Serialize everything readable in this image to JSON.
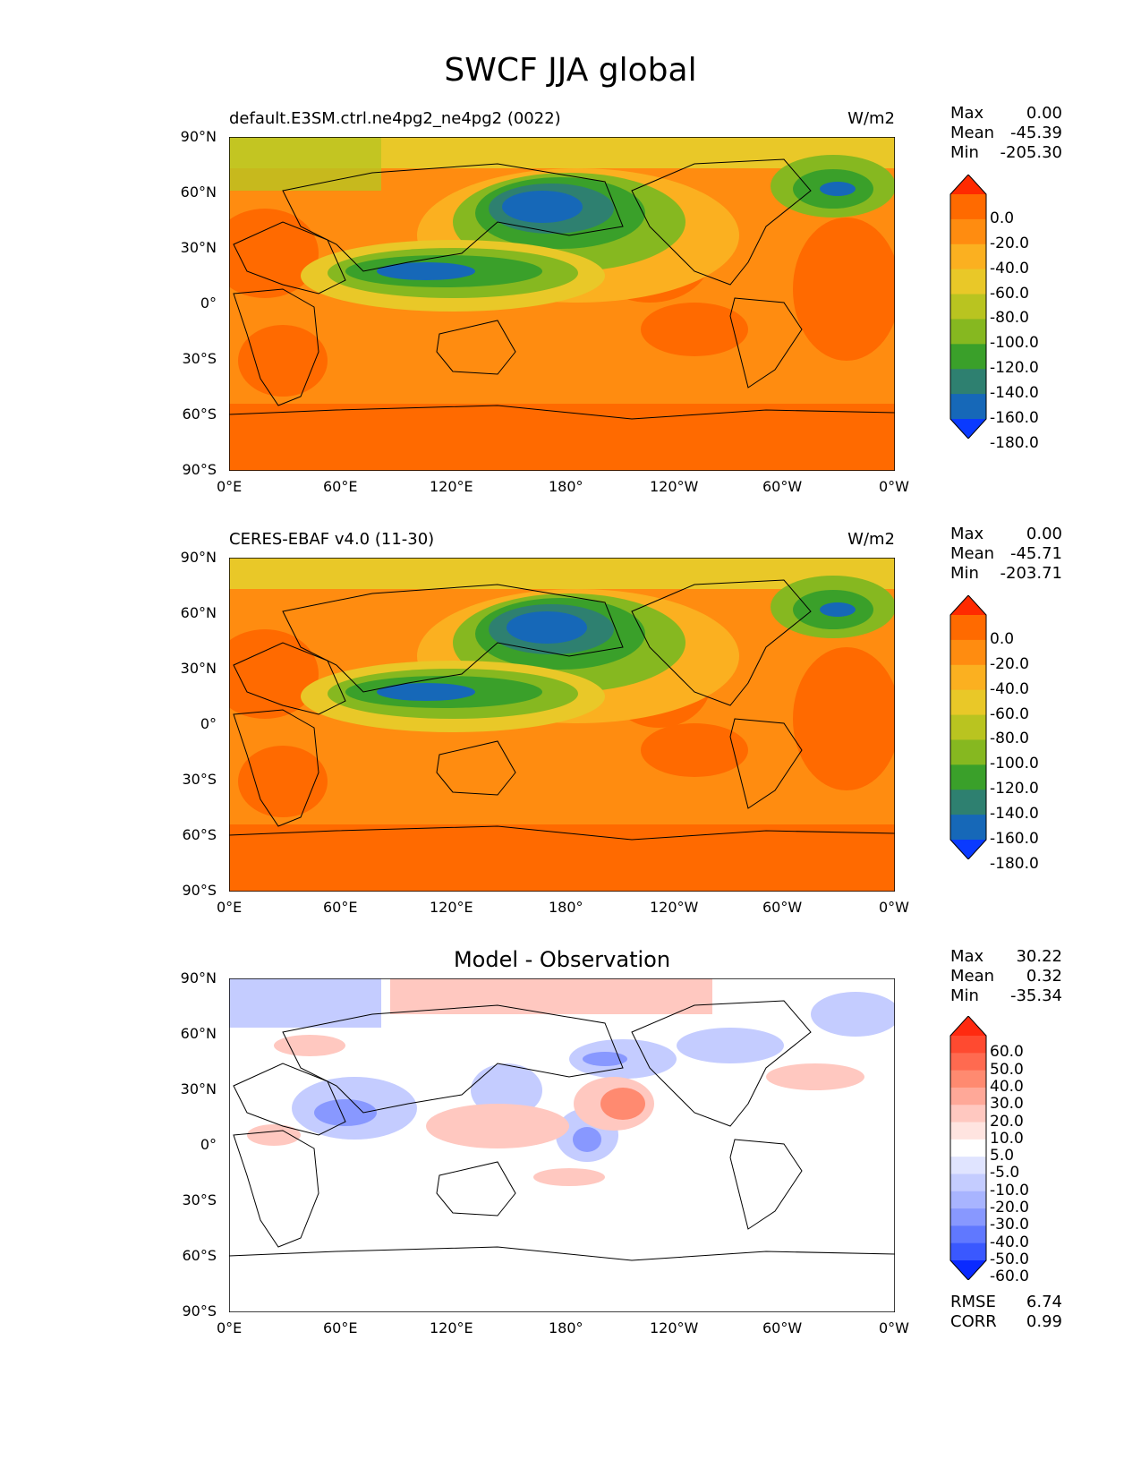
{
  "title": "SWCF JJA global",
  "panels": [
    {
      "title_left": "default.E3SM.ctrl.ne4pg2_ne4pg2 (0022)",
      "title_center": "",
      "title_right": "W/m2",
      "stats": [
        {
          "label": "Max",
          "value": "0.00"
        },
        {
          "label": "Mean",
          "value": "-45.39"
        },
        {
          "label": "Min",
          "value": "-205.30"
        }
      ],
      "colorbar_labels": [
        "0.0",
        "-20.0",
        "-40.0",
        "-60.0",
        "-80.0",
        "-100.0",
        "-120.0",
        "-140.0",
        "-160.0",
        "-180.0"
      ],
      "colorbar_colors": [
        "#ff2a00",
        "#ff6a00",
        "#ff8c10",
        "#fbb020",
        "#e9c828",
        "#b9c420",
        "#86b820",
        "#3aa02a",
        "#2e8070",
        "#1668b8",
        "#0a3aff"
      ],
      "lat_ticks": [
        "90°N",
        "60°N",
        "30°N",
        "0°",
        "30°S",
        "60°S",
        "90°S"
      ],
      "lon_ticks": [
        "0°E",
        "60°E",
        "120°E",
        "180°",
        "120°W",
        "60°W",
        "0°W"
      ]
    },
    {
      "title_left": "CERES-EBAF v4.0 (11-30)",
      "title_center": "",
      "title_right": "W/m2",
      "stats": [
        {
          "label": "Max",
          "value": "0.00"
        },
        {
          "label": "Mean",
          "value": "-45.71"
        },
        {
          "label": "Min",
          "value": "-203.71"
        }
      ],
      "colorbar_labels": [
        "0.0",
        "-20.0",
        "-40.0",
        "-60.0",
        "-80.0",
        "-100.0",
        "-120.0",
        "-140.0",
        "-160.0",
        "-180.0"
      ],
      "colorbar_colors": [
        "#ff2a00",
        "#ff6a00",
        "#ff8c10",
        "#fbb020",
        "#e9c828",
        "#b9c420",
        "#86b820",
        "#3aa02a",
        "#2e8070",
        "#1668b8",
        "#0a3aff"
      ],
      "lat_ticks": [
        "90°N",
        "60°N",
        "30°N",
        "0°",
        "30°S",
        "60°S",
        "90°S"
      ],
      "lon_ticks": [
        "0°E",
        "60°E",
        "120°E",
        "180°",
        "120°W",
        "60°W",
        "0°W"
      ]
    },
    {
      "title_left": "",
      "title_center": "Model - Observation",
      "title_right": "",
      "stats": [
        {
          "label": "Max",
          "value": "30.22"
        },
        {
          "label": "Mean",
          "value": "0.32"
        },
        {
          "label": "Min",
          "value": "-35.34"
        }
      ],
      "colorbar_labels": [
        "60.0",
        "50.0",
        "40.0",
        "30.0",
        "20.0",
        "10.0",
        "5.0",
        "-5.0",
        "-10.0",
        "-20.0",
        "-30.0",
        "-40.0",
        "-50.0",
        "-60.0"
      ],
      "colorbar_colors": [
        "#ff2a10",
        "#ff4a30",
        "#ff6a50",
        "#ff8a70",
        "#ffa898",
        "#ffc8c0",
        "#ffe4e0",
        "#ffffff",
        "#e0e4ff",
        "#c4ccff",
        "#a8b4ff",
        "#8898ff",
        "#6078ff",
        "#3a58ff",
        "#0a2aff"
      ],
      "lat_ticks": [
        "90°N",
        "60°N",
        "30°N",
        "0°",
        "30°S",
        "60°S",
        "90°S"
      ],
      "lon_ticks": [
        "0°E",
        "60°E",
        "120°E",
        "180°",
        "120°W",
        "60°W",
        "0°W"
      ],
      "metrics": [
        {
          "label": "RMSE",
          "value": "6.74"
        },
        {
          "label": "CORR",
          "value": "0.99"
        }
      ]
    }
  ]
}
